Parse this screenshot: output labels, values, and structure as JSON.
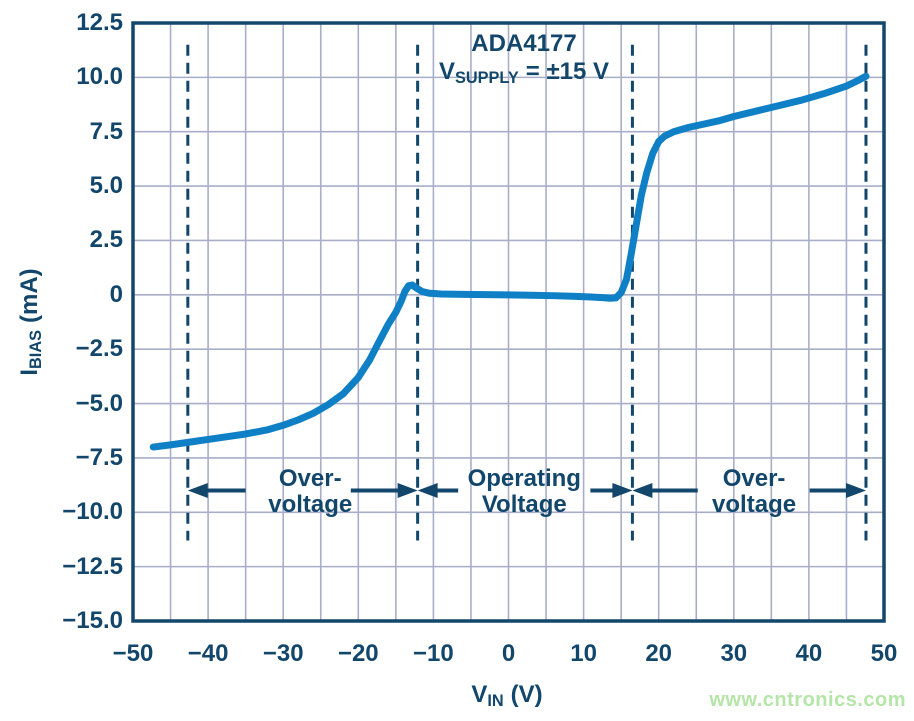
{
  "watermark": "www.cntronics.com",
  "chart_data": {
    "type": "line",
    "title": "ADA4177",
    "subtitle": {
      "var": "V",
      "sub": "SUPPLY",
      "value": "=  ±15 V"
    },
    "xlabel": {
      "var": "V",
      "sub": "IN",
      "unit": "(V)"
    },
    "ylabel": {
      "var": "I",
      "sub": "BIAS",
      "unit": "(mA)"
    },
    "xlim": [
      -50,
      50
    ],
    "ylim": [
      -15,
      12.5
    ],
    "x_tick_values": [
      -50,
      -40,
      -30,
      -20,
      -10,
      0,
      10,
      20,
      30,
      40,
      50
    ],
    "x_tick_labels": [
      "−50",
      "−40",
      "−30",
      "−20",
      "−10",
      "0",
      "10",
      "20",
      "30",
      "40",
      "50"
    ],
    "y_tick_values": [
      12.5,
      10.0,
      7.5,
      5.0,
      2.5,
      0,
      -2.5,
      -5.0,
      -7.5,
      -10.0,
      -12.5,
      -15.0
    ],
    "y_tick_labels": [
      "12.5",
      "10.0",
      "7.5",
      "5.0",
      "2.5",
      "0",
      "−2.5",
      "−5.0",
      "−7.5",
      "−10.0",
      "−12.5",
      "−15.0"
    ],
    "grid": {
      "on": true,
      "x_step": 5,
      "y_step": 2.5
    },
    "series": [
      {
        "name": "input-bias-current",
        "color": "#0f80c6",
        "points": [
          [
            -47.3,
            -7.0
          ],
          [
            -45,
            -6.9
          ],
          [
            -42,
            -6.75
          ],
          [
            -40,
            -6.65
          ],
          [
            -37,
            -6.5
          ],
          [
            -35,
            -6.4
          ],
          [
            -32,
            -6.2
          ],
          [
            -30,
            -6.0
          ],
          [
            -28,
            -5.75
          ],
          [
            -26,
            -5.45
          ],
          [
            -24,
            -5.05
          ],
          [
            -22,
            -4.55
          ],
          [
            -20,
            -3.8
          ],
          [
            -18.5,
            -3.0
          ],
          [
            -17,
            -2.0
          ],
          [
            -16,
            -1.35
          ],
          [
            -15,
            -0.8
          ],
          [
            -14.3,
            -0.3
          ],
          [
            -13.8,
            0.15
          ],
          [
            -13.3,
            0.42
          ],
          [
            -12.8,
            0.45
          ],
          [
            -12.3,
            0.32
          ],
          [
            -11.5,
            0.15
          ],
          [
            -10.5,
            0.07
          ],
          [
            -9,
            0.04
          ],
          [
            -6,
            0.02
          ],
          [
            -3,
            0.01
          ],
          [
            0,
            0.0
          ],
          [
            3,
            -0.02
          ],
          [
            6,
            -0.04
          ],
          [
            9,
            -0.07
          ],
          [
            11,
            -0.1
          ],
          [
            12.5,
            -0.13
          ],
          [
            13.5,
            -0.16
          ],
          [
            14.3,
            -0.14
          ],
          [
            15,
            0.1
          ],
          [
            15.7,
            0.7
          ],
          [
            16.3,
            1.8
          ],
          [
            17,
            3.2
          ],
          [
            17.7,
            4.6
          ],
          [
            18.4,
            5.6
          ],
          [
            19.2,
            6.5
          ],
          [
            20,
            7.05
          ],
          [
            20.8,
            7.3
          ],
          [
            22,
            7.5
          ],
          [
            24,
            7.7
          ],
          [
            26,
            7.85
          ],
          [
            28,
            8.0
          ],
          [
            30,
            8.2
          ],
          [
            33,
            8.45
          ],
          [
            36,
            8.7
          ],
          [
            39,
            8.95
          ],
          [
            42,
            9.25
          ],
          [
            45,
            9.6
          ],
          [
            46.5,
            9.85
          ],
          [
            47.6,
            10.05
          ]
        ]
      }
    ],
    "boundary_lines_v": [
      -42.7,
      -12.1,
      16.5,
      47.6
    ],
    "boundary_line_y_range_ma": [
      11.5,
      -11.3
    ],
    "annotation_y_ma": -9.0,
    "annotations": [
      {
        "line1": "Over-",
        "line2": "voltage",
        "center_v": -26.4,
        "arrows": [
          {
            "from_v": -35.0,
            "to_v": -42.7
          },
          {
            "from_v": -21.0,
            "to_v": -12.1
          }
        ]
      },
      {
        "line1": "Operating",
        "line2": "Voltage",
        "center_v": 2.1,
        "arrows": [
          {
            "from_v": -6.7,
            "to_v": -12.1
          },
          {
            "from_v": 10.9,
            "to_v": 16.5
          }
        ]
      },
      {
        "line1": "Over-",
        "line2": "voltage",
        "center_v": 32.7,
        "arrows": [
          {
            "from_v": 25.2,
            "to_v": 16.5
          },
          {
            "from_v": 40.1,
            "to_v": 47.6
          }
        ]
      }
    ]
  },
  "colors": {
    "text_navy": "#12466b",
    "curve_blue": "#0f80c6",
    "grid_gray": "#a9aec8",
    "frame_navy": "#12466b",
    "watermark_green": "#b5e5a8"
  }
}
